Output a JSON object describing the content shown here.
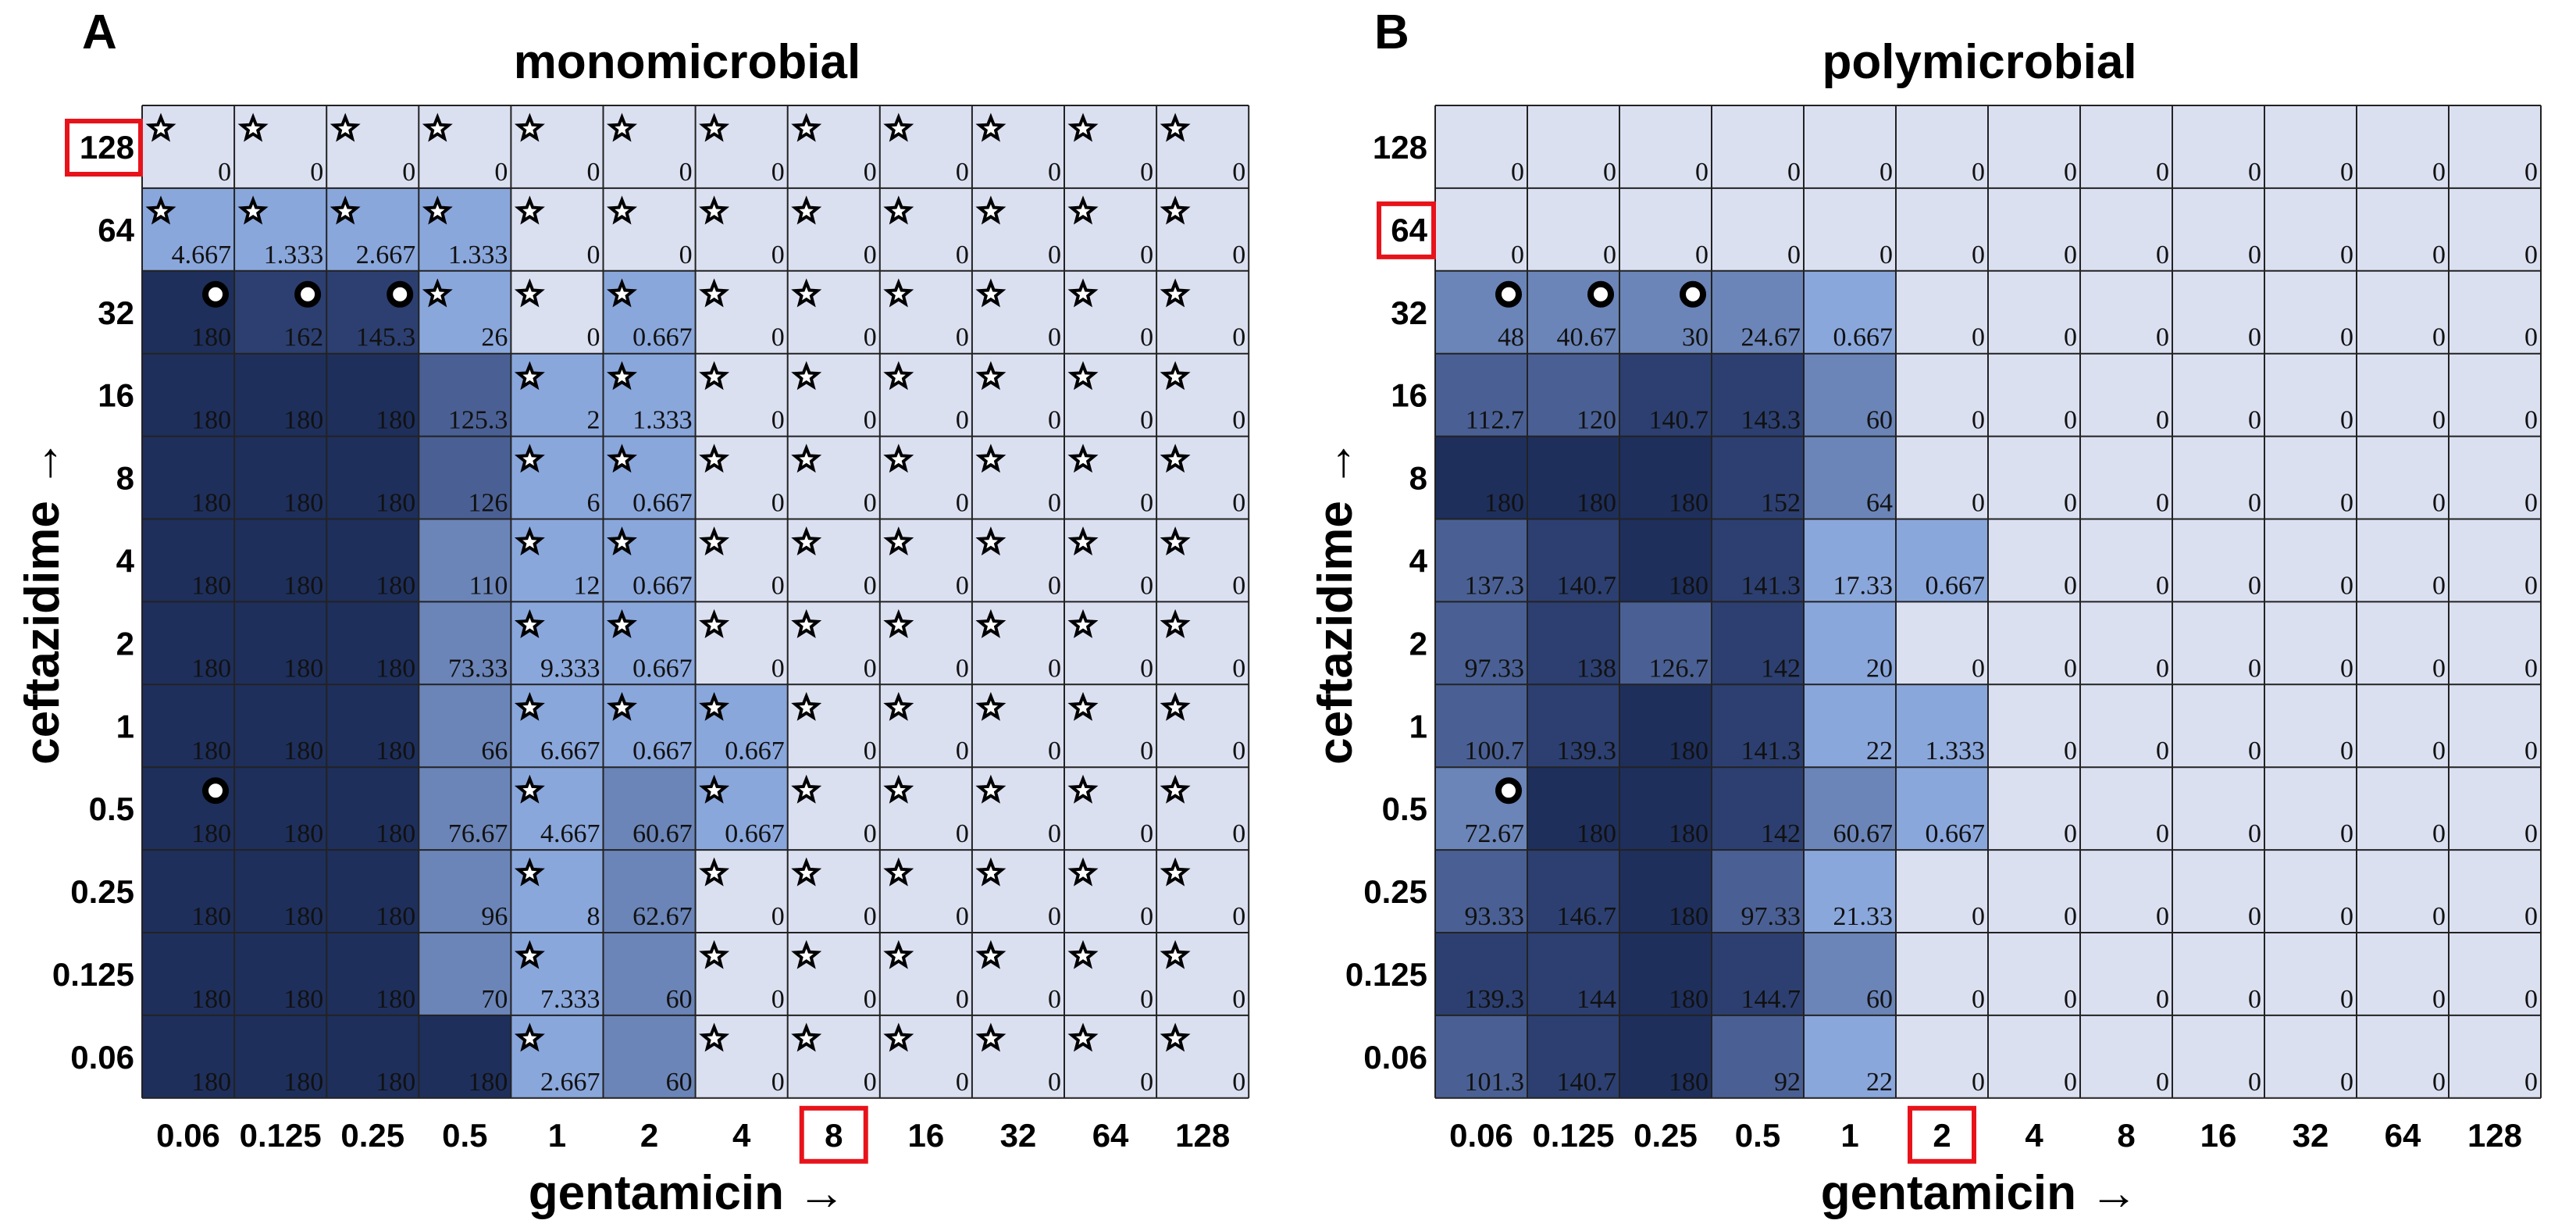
{
  "colors": {
    "empty": "#dbe0f1",
    "c1": "#8aa7dc",
    "c2": "#6b85b8",
    "c3": "#4a6094",
    "c4": "#2c3f70",
    "c5": "#1e2f5c",
    "grid": "#222222",
    "highlight": "#e8131a"
  },
  "chart_data": [
    {
      "type": "heatmap",
      "panel_label": "A",
      "title": "monomicrobial",
      "xlabel": "gentamicin →",
      "ylabel": "ceftazidime →",
      "x_ticks": [
        "0.06",
        "0.125",
        "0.25",
        "0.5",
        "1",
        "2",
        "4",
        "8",
        "16",
        "32",
        "64",
        "128"
      ],
      "y_ticks": [
        "128",
        "64",
        "32",
        "16",
        "8",
        "4",
        "2",
        "1",
        "0.5",
        "0.25",
        "0.125",
        "0.06"
      ],
      "highlight_x": "8",
      "highlight_y": "128",
      "values": [
        [
          "0",
          "0",
          "0",
          "0",
          "0",
          "0",
          "0",
          "0",
          "0",
          "0",
          "0",
          "0"
        ],
        [
          "4.667",
          "1.333",
          "2.667",
          "1.333",
          "0",
          "0",
          "0",
          "0",
          "0",
          "0",
          "0",
          "0"
        ],
        [
          "180",
          "162",
          "145.3",
          "26",
          "0",
          "0.667",
          "0",
          "0",
          "0",
          "0",
          "0",
          "0"
        ],
        [
          "180",
          "180",
          "180",
          "125.3",
          "2",
          "1.333",
          "0",
          "0",
          "0",
          "0",
          "0",
          "0"
        ],
        [
          "180",
          "180",
          "180",
          "126",
          "6",
          "0.667",
          "0",
          "0",
          "0",
          "0",
          "0",
          "0"
        ],
        [
          "180",
          "180",
          "180",
          "110",
          "12",
          "0.667",
          "0",
          "0",
          "0",
          "0",
          "0",
          "0"
        ],
        [
          "180",
          "180",
          "180",
          "73.33",
          "9.333",
          "0.667",
          "0",
          "0",
          "0",
          "0",
          "0",
          "0"
        ],
        [
          "180",
          "180",
          "180",
          "66",
          "6.667",
          "0.667",
          "0.667",
          "0",
          "0",
          "0",
          "0",
          "0"
        ],
        [
          "180",
          "180",
          "180",
          "76.67",
          "4.667",
          "60.67",
          "0.667",
          "0",
          "0",
          "0",
          "0",
          "0"
        ],
        [
          "180",
          "180",
          "180",
          "96",
          "8",
          "62.67",
          "0",
          "0",
          "0",
          "0",
          "0",
          "0"
        ],
        [
          "180",
          "180",
          "180",
          "70",
          "7.333",
          "60",
          "0",
          "0",
          "0",
          "0",
          "0",
          "0"
        ],
        [
          "180",
          "180",
          "180",
          "180",
          "2.667",
          "60",
          "0",
          "0",
          "0",
          "0",
          "0",
          "0"
        ]
      ],
      "shade": [
        [
          0,
          0,
          0,
          0,
          0,
          0,
          0,
          0,
          0,
          0,
          0,
          0
        ],
        [
          1,
          1,
          1,
          1,
          0,
          0,
          0,
          0,
          0,
          0,
          0,
          0
        ],
        [
          5,
          4,
          4,
          1,
          0,
          1,
          0,
          0,
          0,
          0,
          0,
          0
        ],
        [
          5,
          5,
          5,
          3,
          1,
          1,
          0,
          0,
          0,
          0,
          0,
          0
        ],
        [
          5,
          5,
          5,
          3,
          1,
          1,
          0,
          0,
          0,
          0,
          0,
          0
        ],
        [
          5,
          5,
          5,
          2,
          1,
          1,
          0,
          0,
          0,
          0,
          0,
          0
        ],
        [
          5,
          5,
          5,
          2,
          1,
          1,
          0,
          0,
          0,
          0,
          0,
          0
        ],
        [
          5,
          5,
          5,
          2,
          1,
          1,
          1,
          0,
          0,
          0,
          0,
          0
        ],
        [
          5,
          5,
          5,
          2,
          1,
          2,
          1,
          0,
          0,
          0,
          0,
          0
        ],
        [
          5,
          5,
          5,
          2,
          1,
          2,
          0,
          0,
          0,
          0,
          0,
          0
        ],
        [
          5,
          5,
          5,
          2,
          1,
          2,
          0,
          0,
          0,
          0,
          0,
          0
        ],
        [
          5,
          5,
          5,
          5,
          1,
          2,
          0,
          0,
          0,
          0,
          0,
          0
        ]
      ],
      "markers": [
        [
          "star",
          "star",
          "star",
          "star",
          "star",
          "star",
          "star",
          "star",
          "star",
          "star",
          "star",
          "star"
        ],
        [
          "star",
          "star",
          "star",
          "star",
          "star",
          "star",
          "star",
          "star",
          "star",
          "star",
          "star",
          "star"
        ],
        [
          "dot",
          "dot",
          "dot",
          "star",
          "star",
          "star",
          "star",
          "star",
          "star",
          "star",
          "star",
          "star"
        ],
        [
          "",
          "",
          "",
          "",
          "star",
          "star",
          "star",
          "star",
          "star",
          "star",
          "star",
          "star"
        ],
        [
          "",
          "",
          "",
          "",
          "star",
          "star",
          "star",
          "star",
          "star",
          "star",
          "star",
          "star"
        ],
        [
          "",
          "",
          "",
          "",
          "star",
          "star",
          "star",
          "star",
          "star",
          "star",
          "star",
          "star"
        ],
        [
          "",
          "",
          "",
          "",
          "star",
          "star",
          "star",
          "star",
          "star",
          "star",
          "star",
          "star"
        ],
        [
          "",
          "",
          "",
          "",
          "star",
          "star",
          "star",
          "star",
          "star",
          "star",
          "star",
          "star"
        ],
        [
          "dot",
          "",
          "",
          "",
          "star",
          "",
          "star",
          "star",
          "star",
          "star",
          "star",
          "star"
        ],
        [
          "",
          "",
          "",
          "",
          "star",
          "",
          "star",
          "star",
          "star",
          "star",
          "star",
          "star"
        ],
        [
          "",
          "",
          "",
          "",
          "star",
          "",
          "star",
          "star",
          "star",
          "star",
          "star",
          "star"
        ],
        [
          "",
          "",
          "",
          "",
          "star",
          "",
          "star",
          "star",
          "star",
          "star",
          "star",
          "star"
        ]
      ]
    },
    {
      "type": "heatmap",
      "panel_label": "B",
      "title": "polymicrobial",
      "xlabel": "gentamicin →",
      "ylabel": "ceftazidime →",
      "x_ticks": [
        "0.06",
        "0.125",
        "0.25",
        "0.5",
        "1",
        "2",
        "4",
        "8",
        "16",
        "32",
        "64",
        "128"
      ],
      "y_ticks": [
        "128",
        "64",
        "32",
        "16",
        "8",
        "4",
        "2",
        "1",
        "0.5",
        "0.25",
        "0.125",
        "0.06"
      ],
      "highlight_x": "2",
      "highlight_y": "64",
      "values": [
        [
          "0",
          "0",
          "0",
          "0",
          "0",
          "0",
          "0",
          "0",
          "0",
          "0",
          "0",
          "0"
        ],
        [
          "0",
          "0",
          "0",
          "0",
          "0",
          "0",
          "0",
          "0",
          "0",
          "0",
          "0",
          "0"
        ],
        [
          "48",
          "40.67",
          "30",
          "24.67",
          "0.667",
          "0",
          "0",
          "0",
          "0",
          "0",
          "0",
          "0"
        ],
        [
          "112.7",
          "120",
          "140.7",
          "143.3",
          "60",
          "0",
          "0",
          "0",
          "0",
          "0",
          "0",
          "0"
        ],
        [
          "180",
          "180",
          "180",
          "152",
          "64",
          "0",
          "0",
          "0",
          "0",
          "0",
          "0",
          "0"
        ],
        [
          "137.3",
          "140.7",
          "180",
          "141.3",
          "17.33",
          "0.667",
          "0",
          "0",
          "0",
          "0",
          "0",
          "0"
        ],
        [
          "97.33",
          "138",
          "126.7",
          "142",
          "20",
          "0",
          "0",
          "0",
          "0",
          "0",
          "0",
          "0"
        ],
        [
          "100.7",
          "139.3",
          "180",
          "141.3",
          "22",
          "1.333",
          "0",
          "0",
          "0",
          "0",
          "0",
          "0"
        ],
        [
          "72.67",
          "180",
          "180",
          "142",
          "60.67",
          "0.667",
          "0",
          "0",
          "0",
          "0",
          "0",
          "0"
        ],
        [
          "93.33",
          "146.7",
          "180",
          "97.33",
          "21.33",
          "0",
          "0",
          "0",
          "0",
          "0",
          "0",
          "0"
        ],
        [
          "139.3",
          "144",
          "180",
          "144.7",
          "60",
          "0",
          "0",
          "0",
          "0",
          "0",
          "0",
          "0"
        ],
        [
          "101.3",
          "140.7",
          "180",
          "92",
          "22",
          "0",
          "0",
          "0",
          "0",
          "0",
          "0",
          "0"
        ]
      ],
      "shade": [
        [
          0,
          0,
          0,
          0,
          0,
          0,
          0,
          0,
          0,
          0,
          0,
          0
        ],
        [
          0,
          0,
          0,
          0,
          0,
          0,
          0,
          0,
          0,
          0,
          0,
          0
        ],
        [
          2,
          2,
          2,
          2,
          1,
          0,
          0,
          0,
          0,
          0,
          0,
          0
        ],
        [
          3,
          3,
          4,
          4,
          2,
          0,
          0,
          0,
          0,
          0,
          0,
          0
        ],
        [
          5,
          5,
          5,
          4,
          2,
          0,
          0,
          0,
          0,
          0,
          0,
          0
        ],
        [
          3,
          4,
          5,
          4,
          1,
          1,
          0,
          0,
          0,
          0,
          0,
          0
        ],
        [
          3,
          4,
          3,
          4,
          1,
          0,
          0,
          0,
          0,
          0,
          0,
          0
        ],
        [
          3,
          4,
          5,
          4,
          1,
          1,
          0,
          0,
          0,
          0,
          0,
          0
        ],
        [
          2,
          5,
          5,
          4,
          2,
          1,
          0,
          0,
          0,
          0,
          0,
          0
        ],
        [
          3,
          4,
          5,
          3,
          1,
          0,
          0,
          0,
          0,
          0,
          0,
          0
        ],
        [
          4,
          4,
          5,
          4,
          2,
          0,
          0,
          0,
          0,
          0,
          0,
          0
        ],
        [
          3,
          4,
          5,
          3,
          1,
          0,
          0,
          0,
          0,
          0,
          0,
          0
        ]
      ],
      "markers": [
        [
          "",
          "",
          "",
          "",
          "",
          "",
          "",
          "",
          "",
          "",
          "",
          ""
        ],
        [
          "",
          "",
          "",
          "",
          "",
          "",
          "",
          "",
          "",
          "",
          "",
          ""
        ],
        [
          "dot",
          "dot",
          "dot",
          "",
          "",
          "",
          "",
          "",
          "",
          "",
          "",
          ""
        ],
        [
          "",
          "",
          "",
          "",
          "",
          "",
          "",
          "",
          "",
          "",
          "",
          ""
        ],
        [
          "",
          "",
          "",
          "",
          "",
          "",
          "",
          "",
          "",
          "",
          "",
          ""
        ],
        [
          "",
          "",
          "",
          "",
          "",
          "",
          "",
          "",
          "",
          "",
          "",
          ""
        ],
        [
          "",
          "",
          "",
          "",
          "",
          "",
          "",
          "",
          "",
          "",
          "",
          ""
        ],
        [
          "",
          "",
          "",
          "",
          "",
          "",
          "",
          "",
          "",
          "",
          "",
          ""
        ],
        [
          "dot",
          "",
          "",
          "",
          "",
          "",
          "",
          "",
          "",
          "",
          "",
          ""
        ],
        [
          "",
          "",
          "",
          "",
          "",
          "",
          "",
          "",
          "",
          "",
          "",
          ""
        ],
        [
          "",
          "",
          "",
          "",
          "",
          "",
          "",
          "",
          "",
          "",
          "",
          ""
        ],
        [
          "",
          "",
          "",
          "",
          "",
          "",
          "",
          "",
          "",
          "",
          "",
          ""
        ]
      ]
    }
  ]
}
